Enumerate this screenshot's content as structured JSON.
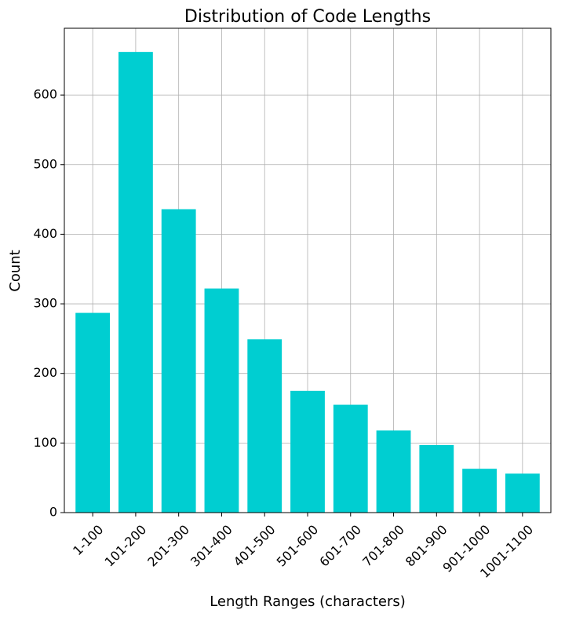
{
  "chart_data": {
    "type": "bar",
    "title": "Distribution of Code Lengths",
    "x_label": "Length Ranges (characters)",
    "y_label": "Count",
    "categories": [
      "1-100",
      "101-200",
      "201-300",
      "301-400",
      "401-500",
      "501-600",
      "601-700",
      "701-800",
      "801-900",
      "901-1000",
      "1001-1100"
    ],
    "values": [
      287,
      662,
      436,
      322,
      249,
      175,
      155,
      118,
      97,
      63,
      56
    ],
    "color": "#00ced1",
    "ylim": [
      0,
      696
    ],
    "yticks": [
      0,
      100,
      200,
      300,
      400,
      500,
      600
    ],
    "grid": true
  }
}
